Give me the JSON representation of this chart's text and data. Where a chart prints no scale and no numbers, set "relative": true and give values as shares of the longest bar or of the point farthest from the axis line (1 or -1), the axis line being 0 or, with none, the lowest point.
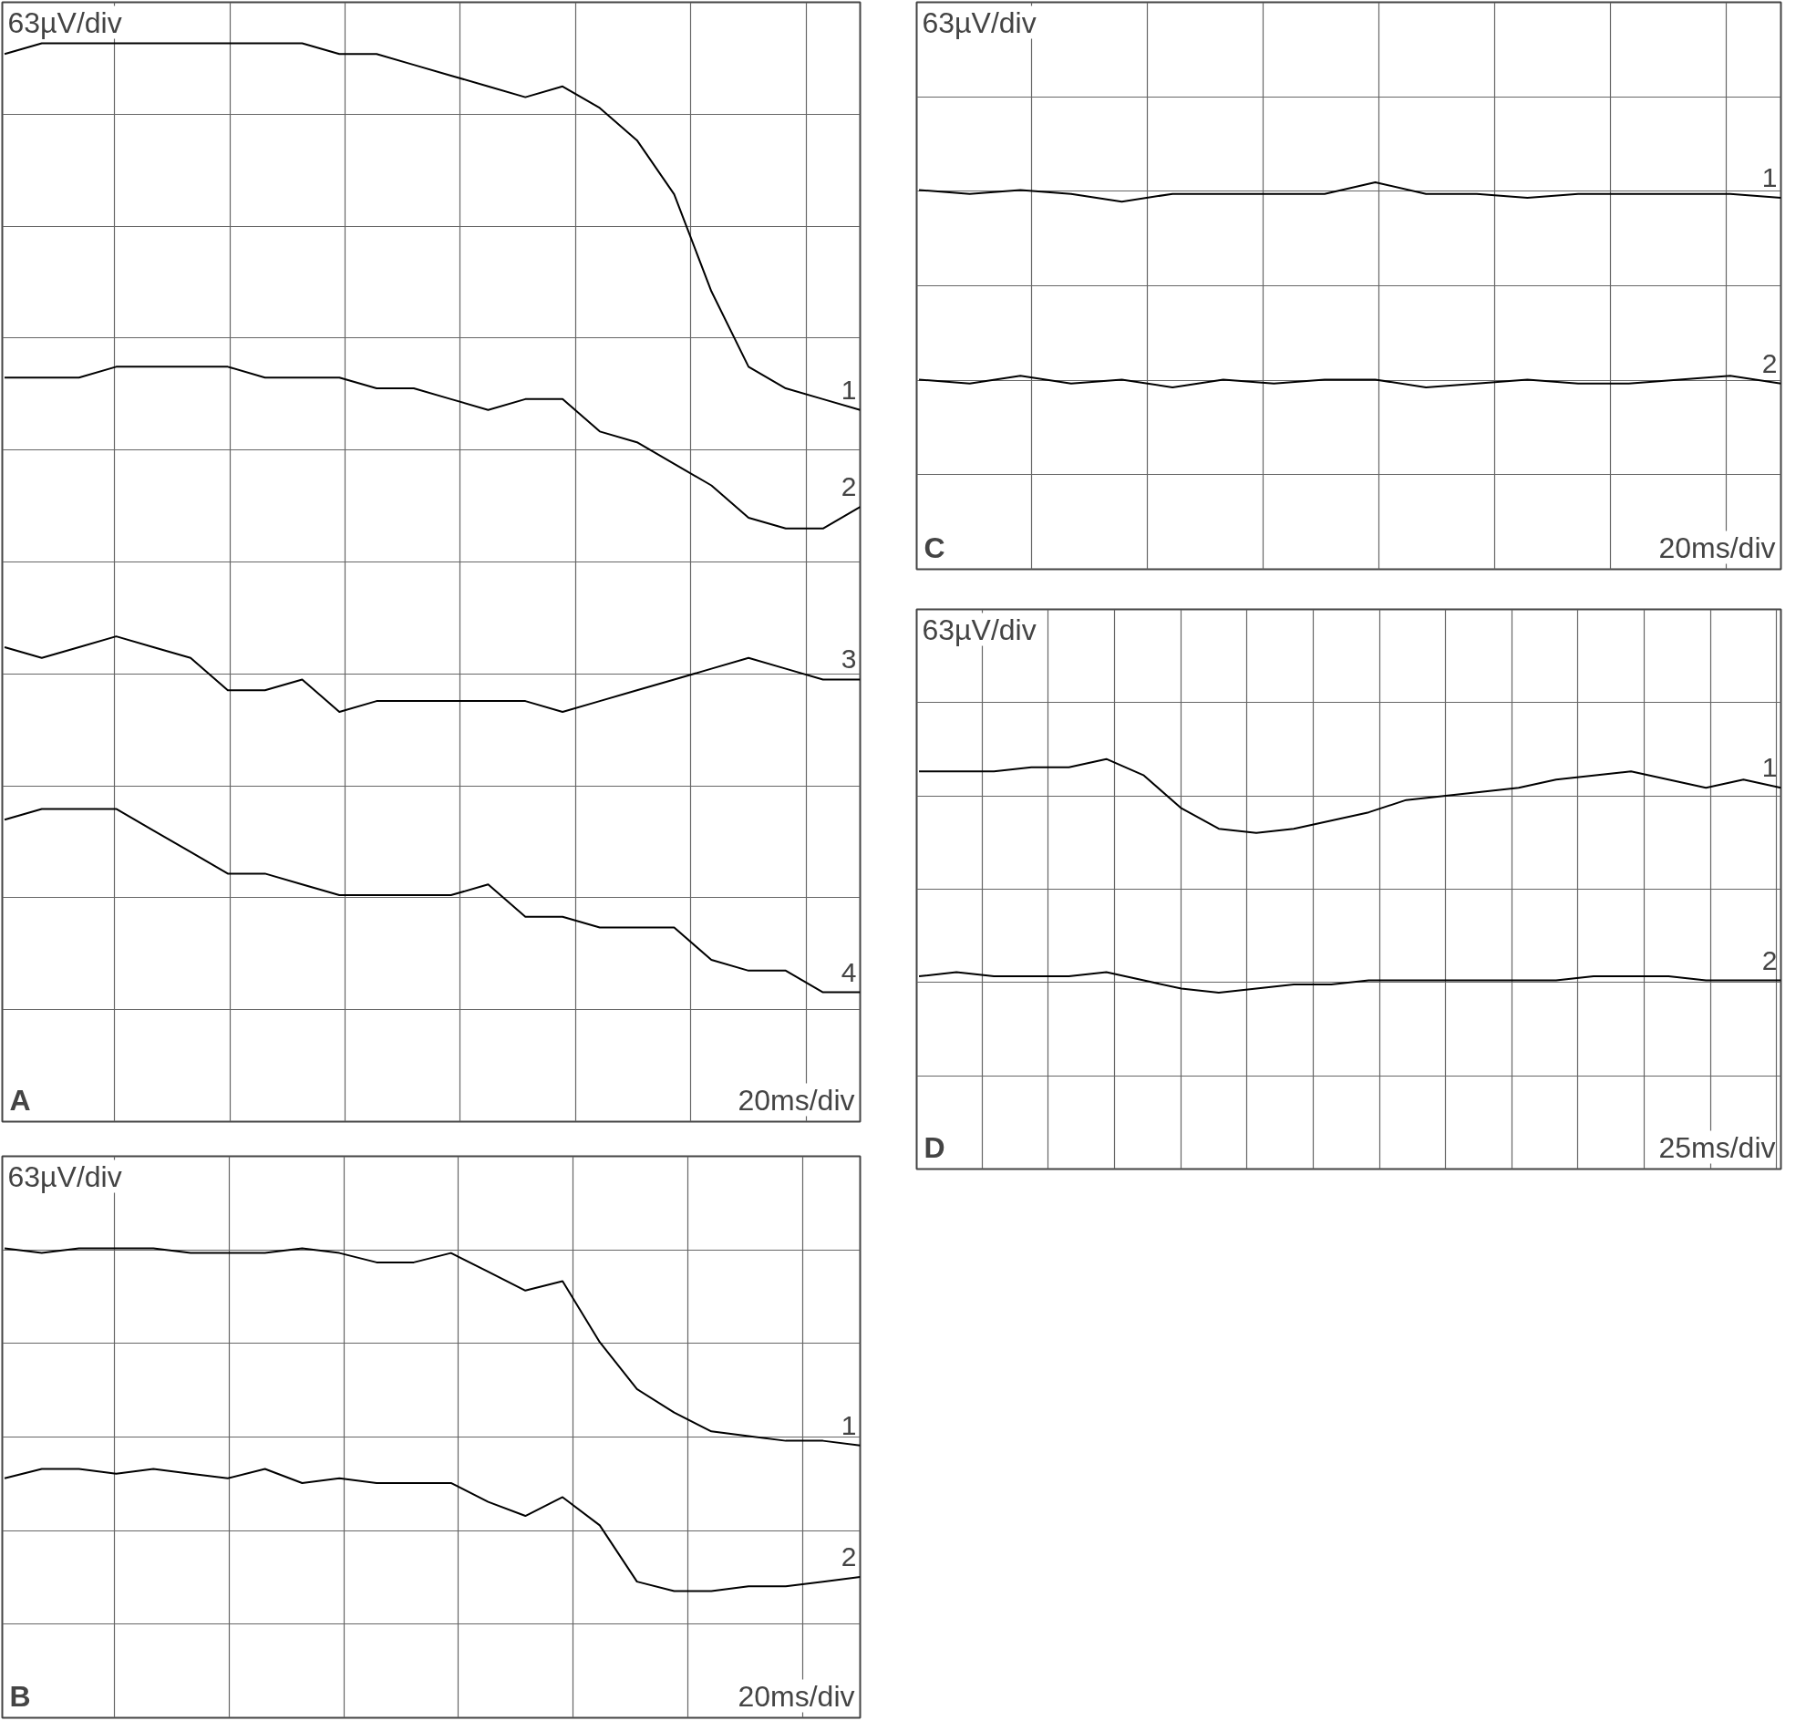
{
  "chart_data": [
    {
      "type": "line",
      "title": "A",
      "annotations": [
        "63µV/div",
        "20ms/div"
      ],
      "relative": true,
      "categories": [
        null,
        null,
        null,
        null,
        null,
        null,
        null,
        null,
        null,
        null,
        null,
        null,
        null,
        null,
        null,
        null,
        null,
        null,
        null,
        null,
        null,
        null,
        null,
        null
      ],
      "tick_labels": false,
      "grid": true,
      "legend": false,
      "line_style": "solid",
      "series": [
        {
          "name": "1",
          "color": "#000000",
          "values": [
            0.99,
            1.0,
            1.0,
            1.0,
            1.0,
            1.0,
            1.0,
            1.0,
            1.0,
            0.99,
            0.99,
            0.98,
            0.97,
            0.96,
            0.95,
            0.96,
            0.94,
            0.91,
            0.86,
            0.77,
            0.7,
            0.68,
            0.67,
            0.66
          ]
        },
        {
          "name": "2",
          "color": "#000000",
          "values": [
            0.69,
            0.69,
            0.69,
            0.7,
            0.7,
            0.7,
            0.7,
            0.69,
            0.69,
            0.69,
            0.68,
            0.68,
            0.67,
            0.66,
            0.67,
            0.67,
            0.64,
            0.63,
            0.61,
            0.59,
            0.56,
            0.55,
            0.55,
            0.57
          ]
        },
        {
          "name": "3",
          "color": "#000000",
          "values": [
            0.44,
            0.43,
            0.44,
            0.45,
            0.44,
            0.43,
            0.4,
            0.4,
            0.41,
            0.38,
            0.39,
            0.39,
            0.39,
            0.39,
            0.39,
            0.38,
            0.39,
            0.4,
            0.41,
            0.42,
            0.43,
            0.42,
            0.41,
            0.41
          ]
        },
        {
          "name": "4",
          "color": "#000000",
          "values": [
            0.28,
            0.29,
            0.29,
            0.29,
            0.27,
            0.25,
            0.23,
            0.23,
            0.22,
            0.21,
            0.21,
            0.21,
            0.21,
            0.22,
            0.19,
            0.19,
            0.18,
            0.18,
            0.18,
            0.15,
            0.14,
            0.14,
            0.12,
            0.12
          ]
        }
      ]
    },
    {
      "type": "line",
      "title": "B",
      "annotations": [
        "63µV/div",
        "20ms/div"
      ],
      "relative": true,
      "categories": [
        null,
        null,
        null,
        null,
        null,
        null,
        null,
        null,
        null,
        null,
        null,
        null,
        null,
        null,
        null,
        null,
        null,
        null,
        null,
        null,
        null,
        null,
        null,
        null
      ],
      "tick_labels": false,
      "grid": true,
      "legend": false,
      "line_style": "solid",
      "series": [
        {
          "name": "1",
          "color": "#000000",
          "values": [
            1.0,
            0.99,
            1.0,
            1.0,
            1.0,
            0.99,
            0.99,
            0.99,
            1.0,
            0.99,
            0.97,
            0.97,
            0.99,
            0.95,
            0.91,
            0.93,
            0.8,
            0.7,
            0.65,
            0.61,
            0.6,
            0.59,
            0.59,
            0.58
          ]
        },
        {
          "name": "2",
          "color": "#000000",
          "values": [
            0.51,
            0.53,
            0.53,
            0.52,
            0.53,
            0.52,
            0.51,
            0.53,
            0.5,
            0.51,
            0.5,
            0.5,
            0.5,
            0.46,
            0.43,
            0.47,
            0.41,
            0.29,
            0.27,
            0.27,
            0.28,
            0.28,
            0.29,
            0.3
          ]
        }
      ]
    },
    {
      "type": "line",
      "title": "C",
      "annotations": [
        "63µV/div",
        "20ms/div"
      ],
      "relative": true,
      "categories": [
        null,
        null,
        null,
        null,
        null,
        null,
        null,
        null,
        null,
        null,
        null,
        null,
        null,
        null,
        null,
        null,
        null,
        null
      ],
      "tick_labels": false,
      "grid": true,
      "legend": false,
      "line_style": "solid",
      "series": [
        {
          "name": "1",
          "color": "#000000",
          "values": [
            0.98,
            0.97,
            0.98,
            0.97,
            0.95,
            0.97,
            0.97,
            0.97,
            0.97,
            1.0,
            0.97,
            0.97,
            0.96,
            0.97,
            0.97,
            0.97,
            0.97,
            0.96
          ]
        },
        {
          "name": "2",
          "color": "#000000",
          "values": [
            0.49,
            0.48,
            0.5,
            0.48,
            0.49,
            0.47,
            0.49,
            0.48,
            0.49,
            0.49,
            0.47,
            0.48,
            0.49,
            0.48,
            0.48,
            0.49,
            0.5,
            0.48
          ]
        }
      ]
    },
    {
      "type": "line",
      "title": "D",
      "annotations": [
        "63µV/div",
        "25ms/div"
      ],
      "relative": true,
      "categories": [
        null,
        null,
        null,
        null,
        null,
        null,
        null,
        null,
        null,
        null,
        null,
        null,
        null,
        null,
        null,
        null,
        null,
        null,
        null,
        null,
        null,
        null,
        null,
        null
      ],
      "tick_labels": false,
      "grid": true,
      "legend": false,
      "line_style": "solid",
      "series": [
        {
          "name": "1",
          "color": "#000000",
          "values": [
            0.97,
            0.97,
            0.97,
            0.98,
            0.98,
            1.0,
            0.96,
            0.88,
            0.83,
            0.82,
            0.83,
            0.85,
            0.87,
            0.9,
            0.91,
            0.92,
            0.93,
            0.95,
            0.96,
            0.97,
            0.95,
            0.93,
            0.95,
            0.93
          ]
        },
        {
          "name": "2",
          "color": "#000000",
          "values": [
            0.47,
            0.48,
            0.47,
            0.47,
            0.47,
            0.48,
            0.46,
            0.44,
            0.43,
            0.44,
            0.45,
            0.45,
            0.46,
            0.46,
            0.46,
            0.46,
            0.46,
            0.46,
            0.47,
            0.47,
            0.47,
            0.46,
            0.46,
            0.46
          ]
        }
      ]
    }
  ]
}
